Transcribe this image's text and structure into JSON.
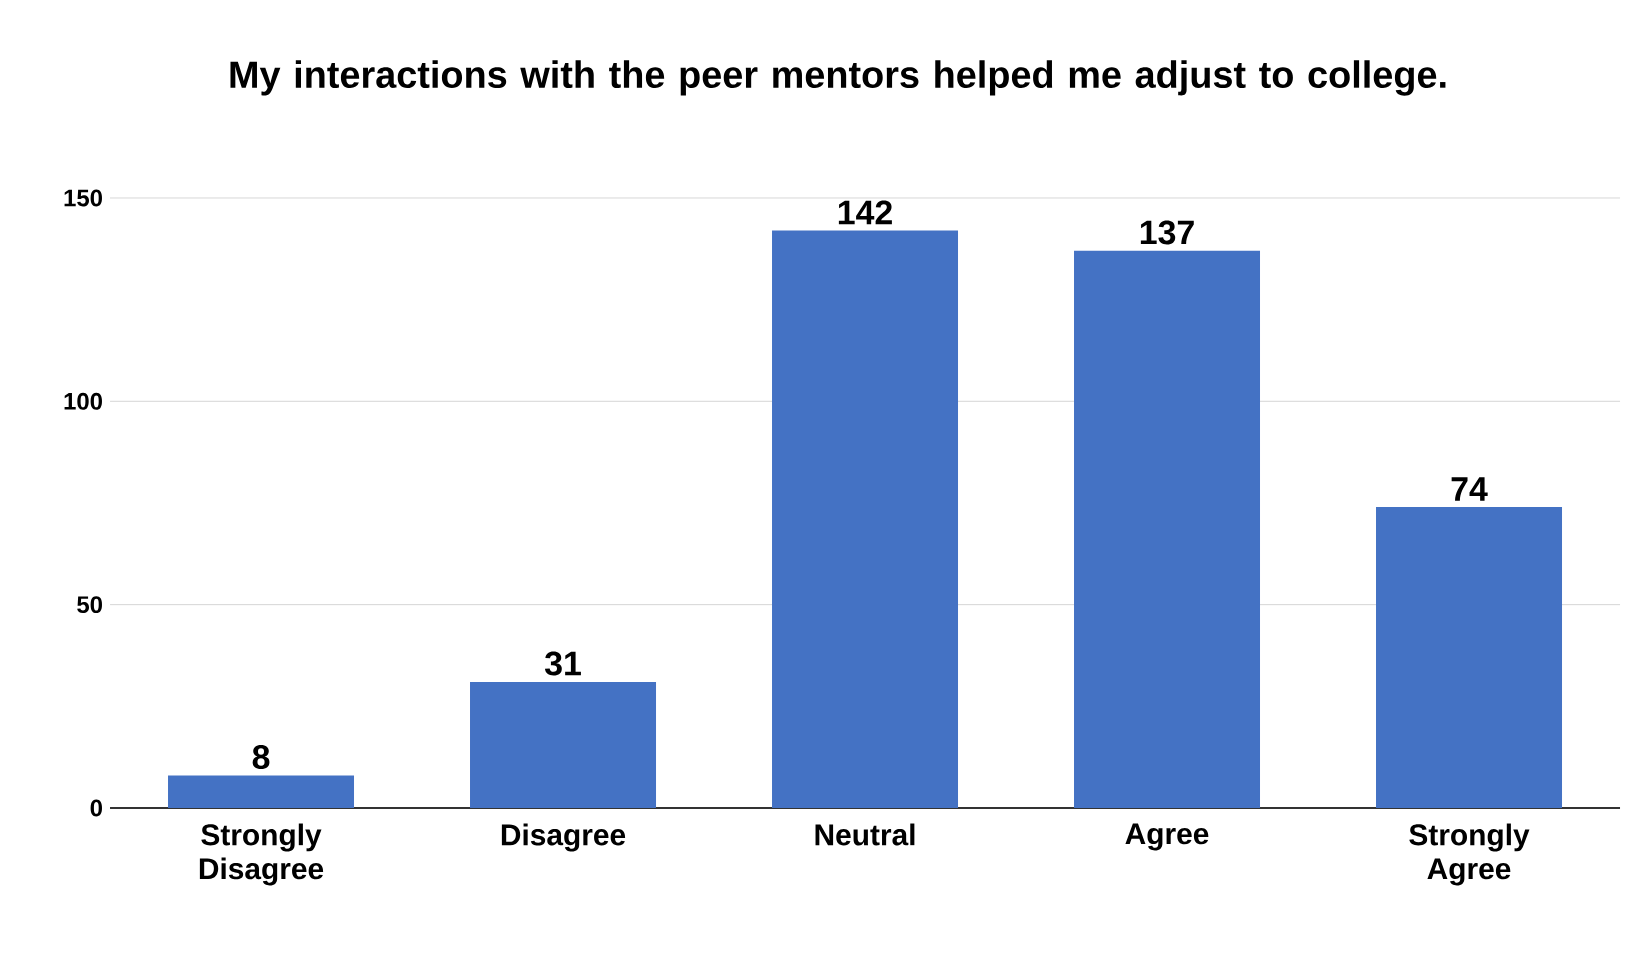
{
  "chart_data": {
    "type": "bar",
    "title": "My interactions with the peer mentors helped me adjust to college.",
    "categories": [
      "Strongly Disagree",
      "Disagree",
      "Neutral",
      "Agree",
      "Strongly Agree"
    ],
    "values": [
      8,
      31,
      142,
      137,
      74
    ],
    "color": "#4472c4",
    "ylim": [
      0,
      150
    ],
    "yticks": [
      0,
      50,
      100,
      150
    ],
    "grid": "y",
    "data_labels": true
  }
}
